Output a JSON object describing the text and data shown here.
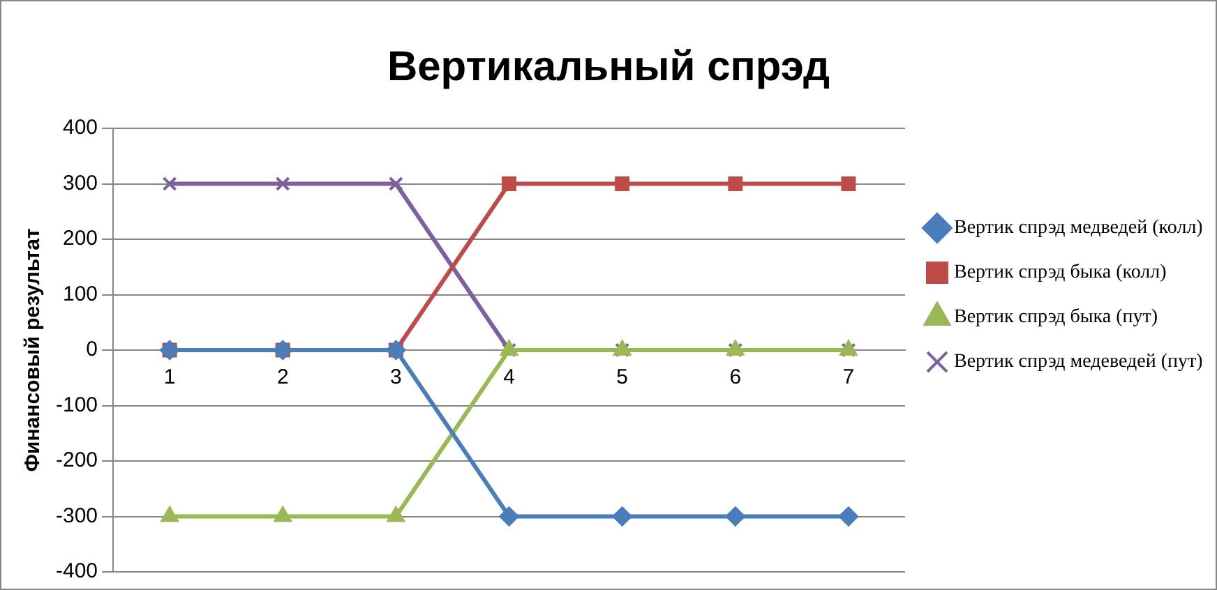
{
  "chart_data": {
    "type": "line",
    "title": "Вертикальный спрэд",
    "ylabel": "Финансовый результат",
    "categories": [
      "1",
      "2",
      "3",
      "4",
      "5",
      "6",
      "7"
    ],
    "series": [
      {
        "name": "Вертик спрэд медведей (колл)",
        "color": "#4a7ebb",
        "marker": "diamond",
        "values": [
          0,
          0,
          0,
          -300,
          -300,
          -300,
          -300
        ]
      },
      {
        "name": "Вертик спрэд быка (колл)",
        "color": "#be4b48",
        "marker": "square",
        "values": [
          0,
          0,
          0,
          300,
          300,
          300,
          300
        ]
      },
      {
        "name": "Вертик спрэд быка (пут)",
        "color": "#98b954",
        "marker": "triangle",
        "values": [
          -300,
          -300,
          -300,
          0,
          0,
          0,
          0
        ]
      },
      {
        "name": "Вертик спрэд медеведей (пут)",
        "color": "#7d60a0",
        "marker": "cross",
        "values": [
          300,
          300,
          300,
          0,
          0,
          0,
          0
        ]
      }
    ],
    "ylim": [
      -400,
      400
    ],
    "yticks": [
      -400,
      -300,
      -200,
      -100,
      0,
      100,
      200,
      300,
      400
    ],
    "grid": "y",
    "legend": "right"
  }
}
